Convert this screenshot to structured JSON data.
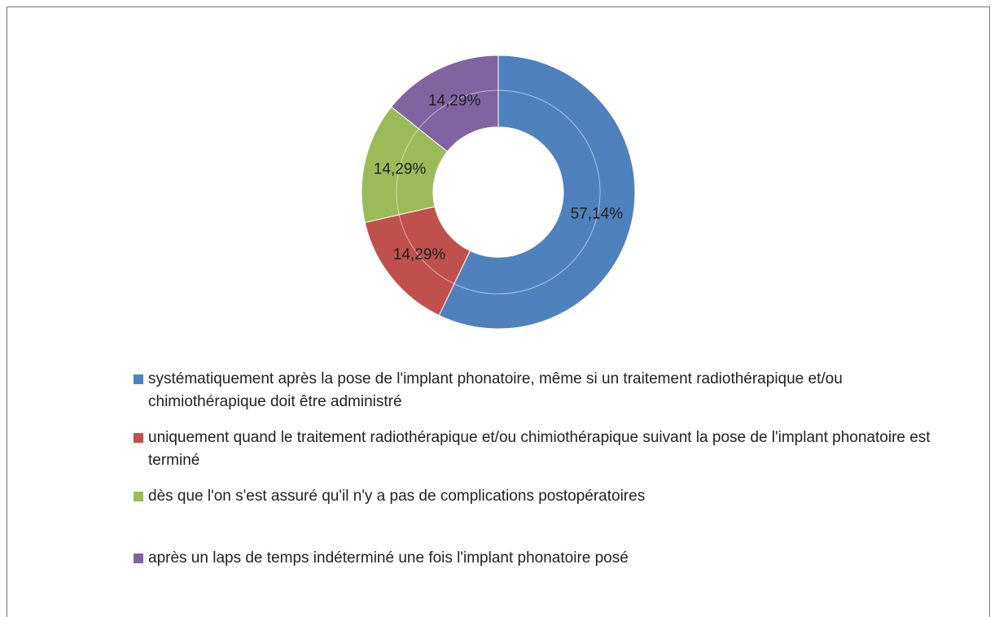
{
  "chart_data": {
    "type": "donut",
    "categories": [
      "systématiquement après la pose de l'implant phonatoire, même si un traitement radiothérapique et/ou chimiothérapique doit être administré",
      "uniquement quand le traitement radiothérapique et/ou chimiothérapique suivant la pose de l'implant phonatoire est terminé",
      "dès que l'on s'est assuré qu'il n'y a pas de complications postopératoires",
      "après un laps de temps indéterminé une fois l'implant phonatoire posé"
    ],
    "values": [
      57.14,
      14.29,
      14.29,
      14.29
    ],
    "value_labels": [
      "57,14%",
      "14,29%",
      "14,29%",
      "14,29%"
    ],
    "colors": [
      "#4f81bd",
      "#c0504d",
      "#9bbb59",
      "#8064a2"
    ],
    "legend": "bottom"
  }
}
